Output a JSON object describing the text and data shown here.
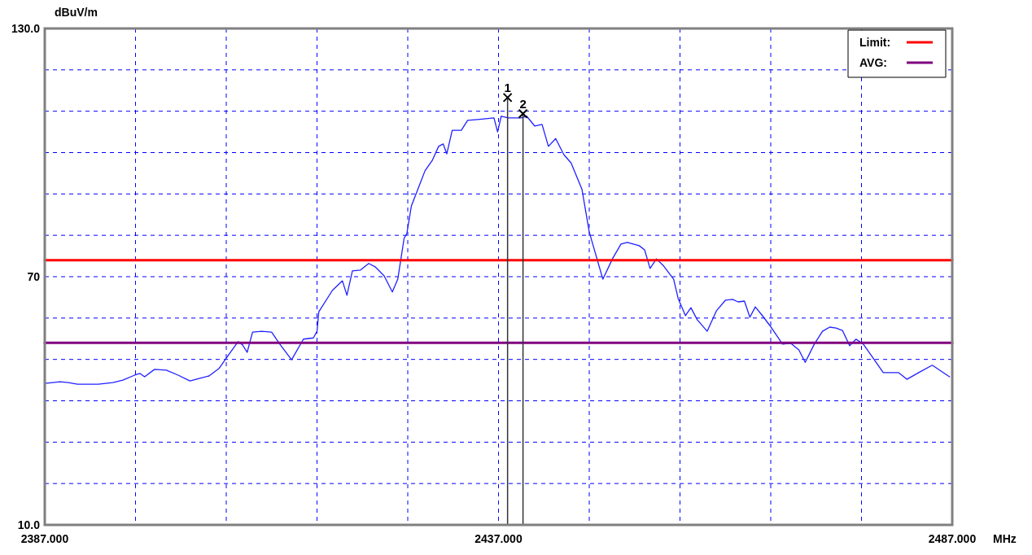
{
  "chart_data": {
    "type": "line",
    "xlabel": "MHz",
    "ylabel": "dBuV/m",
    "xlim": [
      2387,
      2487
    ],
    "ylim": [
      10,
      130
    ],
    "xticks": [
      {
        "value": 2387,
        "label": "2387.000"
      },
      {
        "value": 2397,
        "label": null
      },
      {
        "value": 2407,
        "label": null
      },
      {
        "value": 2417,
        "label": null
      },
      {
        "value": 2427,
        "label": null
      },
      {
        "value": 2437,
        "label": "2437.000"
      },
      {
        "value": 2447,
        "label": null
      },
      {
        "value": 2457,
        "label": null
      },
      {
        "value": 2467,
        "label": null
      },
      {
        "value": 2477,
        "label": null
      },
      {
        "value": 2487,
        "label": "2487.000"
      }
    ],
    "yticks": [
      {
        "value": 10,
        "label": "10.0"
      },
      {
        "value": 20,
        "label": null
      },
      {
        "value": 30,
        "label": null
      },
      {
        "value": 40,
        "label": null
      },
      {
        "value": 50,
        "label": null
      },
      {
        "value": 60,
        "label": null
      },
      {
        "value": 70,
        "label": "70"
      },
      {
        "value": 80,
        "label": null
      },
      {
        "value": 90,
        "label": null
      },
      {
        "value": 100,
        "label": null
      },
      {
        "value": 110,
        "label": null
      },
      {
        "value": 120,
        "label": null
      },
      {
        "value": 130,
        "label": "130.0"
      }
    ],
    "grid": true,
    "legend": "top right",
    "series": [
      {
        "color": "#2020ff",
        "x": [
          2387.0,
          2388.7,
          2389.6,
          2390.6,
          2392.9,
          2394.5,
          2395.6,
          2396.9,
          2397.5,
          2398.0,
          2399.1,
          2400.4,
          2401.7,
          2403.0,
          2404.0,
          2405.1,
          2406.2,
          2407.0,
          2408.3,
          2408.8,
          2409.3,
          2409.9,
          2410.9,
          2412.0,
          2412.9,
          2414.2,
          2415.5,
          2416.6,
          2417.0,
          2417.2,
          2418.7,
          2419.8,
          2420.3,
          2420.9,
          2421.8,
          2422.7,
          2423.4,
          2424.4,
          2425.3,
          2425.9,
          2426.6,
          2426.9,
          2427.4,
          2428.3,
          2428.9,
          2429.7,
          2430.4,
          2430.9,
          2431.3,
          2431.9,
          2432.9,
          2433.6,
          2434.7,
          2436.5,
          2436.9,
          2437.3,
          2438.1,
          2439.5,
          2440.1,
          2441.0,
          2441.8,
          2442.5,
          2443.3,
          2444.2,
          2445.0,
          2446.2,
          2447.0,
          2448.5,
          2449.6,
          2450.5,
          2451.2,
          2452.5,
          2453.1,
          2453.7,
          2454.4,
          2455.2,
          2456.3,
          2456.8,
          2457.6,
          2458.2,
          2458.9,
          2460.0,
          2461.0,
          2462.0,
          2462.8,
          2463.4,
          2464.1,
          2464.7,
          2465.3,
          2466.0,
          2466.9,
          2468.3,
          2469.2,
          2470.1,
          2470.8,
          2471.8,
          2472.7,
          2473.5,
          2474.2,
          2474.9,
          2475.7,
          2476.4,
          2477.2,
          2478.1,
          2479.4,
          2481.1,
          2482.0,
          2483.3,
          2484.8,
          2486.7
        ],
        "values": [
          44.2,
          44.6,
          44.4,
          44.0,
          44.0,
          44.4,
          45.0,
          46.2,
          46.6,
          45.8,
          47.6,
          47.4,
          46.2,
          44.8,
          45.4,
          46.0,
          47.8,
          50.3,
          54.3,
          53.5,
          51.7,
          56.6,
          56.8,
          56.6,
          53.7,
          49.9,
          54.9,
          55.2,
          56.8,
          61.5,
          66.7,
          69.0,
          65.5,
          71.4,
          71.6,
          73.2,
          72.4,
          70.2,
          66.3,
          69.4,
          79.3,
          80.4,
          87.1,
          92.2,
          95.6,
          98.1,
          101.5,
          102.1,
          99.7,
          105.4,
          105.4,
          107.8,
          108.0,
          108.4,
          105.0,
          108.8,
          108.4,
          108.4,
          108.8,
          106.4,
          106.8,
          101.5,
          103.4,
          99.5,
          97.5,
          91.1,
          80.8,
          69.4,
          74.5,
          77.9,
          78.3,
          77.5,
          76.5,
          72.0,
          74.3,
          72.6,
          69.4,
          64.7,
          60.6,
          62.5,
          59.6,
          56.8,
          61.7,
          64.3,
          64.5,
          63.9,
          64.1,
          60.2,
          62.7,
          60.8,
          58.2,
          53.7,
          53.9,
          52.3,
          49.3,
          53.7,
          56.8,
          57.8,
          57.6,
          57.0,
          53.3,
          54.9,
          53.7,
          50.9,
          46.8,
          46.8,
          45.2,
          46.8,
          48.6,
          45.8
        ]
      },
      {
        "name": "Limit:",
        "color": "#ff0000",
        "x": [
          2387,
          2487
        ],
        "values": [
          74,
          74
        ]
      },
      {
        "name": "AVG:",
        "color": "#800080",
        "x": [
          2387,
          2487
        ],
        "values": [
          54,
          54
        ]
      },
      {
        "type": "scatter",
        "color": "#000000",
        "marker": "cross",
        "x": [
          2438.0,
          2439.7
        ],
        "values": [
          113.3,
          109.4
        ],
        "errors": [
          [
            10,
            113.3
          ],
          [
            10,
            109.4
          ]
        ]
      }
    ],
    "annotations": [
      {
        "text": "1",
        "x": 2438.0,
        "y": 113.3
      },
      {
        "text": "2",
        "x": 2439.7,
        "y": 109.4
      }
    ]
  }
}
